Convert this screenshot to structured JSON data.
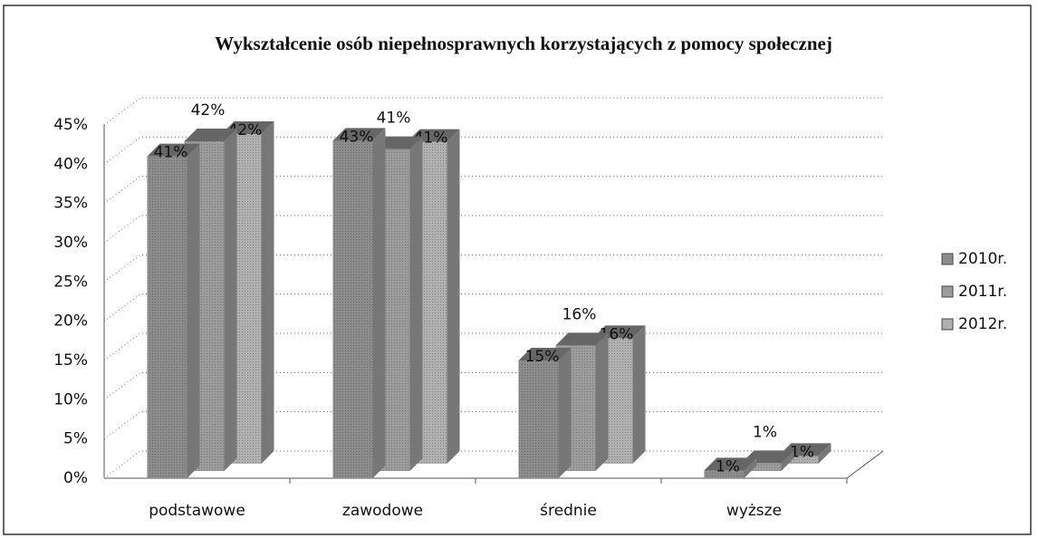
{
  "chart_data": {
    "type": "bar",
    "title": "Wykształcenie osób niepełnosprawnych korzystających z pomocy społecznej",
    "categories": [
      "podstawowe",
      "zawodowe",
      "średnie",
      "wyższe"
    ],
    "series": [
      {
        "name": "2010r.",
        "color": "#8c8c8c",
        "values": [
          41,
          43,
          15,
          1
        ],
        "value_labels": [
          "41%",
          "43%",
          "15%",
          "1%"
        ]
      },
      {
        "name": "2011r.",
        "color": "#9c9c9c",
        "values": [
          42,
          41,
          16,
          1
        ],
        "value_labels": [
          "42%",
          "41%",
          "16%",
          "1%"
        ]
      },
      {
        "name": "2012r.",
        "color": "#b0b0b0",
        "values": [
          42,
          41,
          16,
          1
        ],
        "value_labels": [
          "42%",
          "41%",
          "16%",
          "1%"
        ]
      }
    ],
    "ylim": [
      0,
      45
    ],
    "yticks": [
      {
        "value": 0,
        "label": "0%"
      },
      {
        "value": 5,
        "label": "5%"
      },
      {
        "value": 10,
        "label": "10%"
      },
      {
        "value": 15,
        "label": "15%"
      },
      {
        "value": 20,
        "label": "20%"
      },
      {
        "value": 25,
        "label": "25%"
      },
      {
        "value": 30,
        "label": "30%"
      },
      {
        "value": 35,
        "label": "35%"
      },
      {
        "value": 40,
        "label": "40%"
      },
      {
        "value": 45,
        "label": "45%"
      }
    ],
    "grid": true,
    "legend": "right"
  }
}
